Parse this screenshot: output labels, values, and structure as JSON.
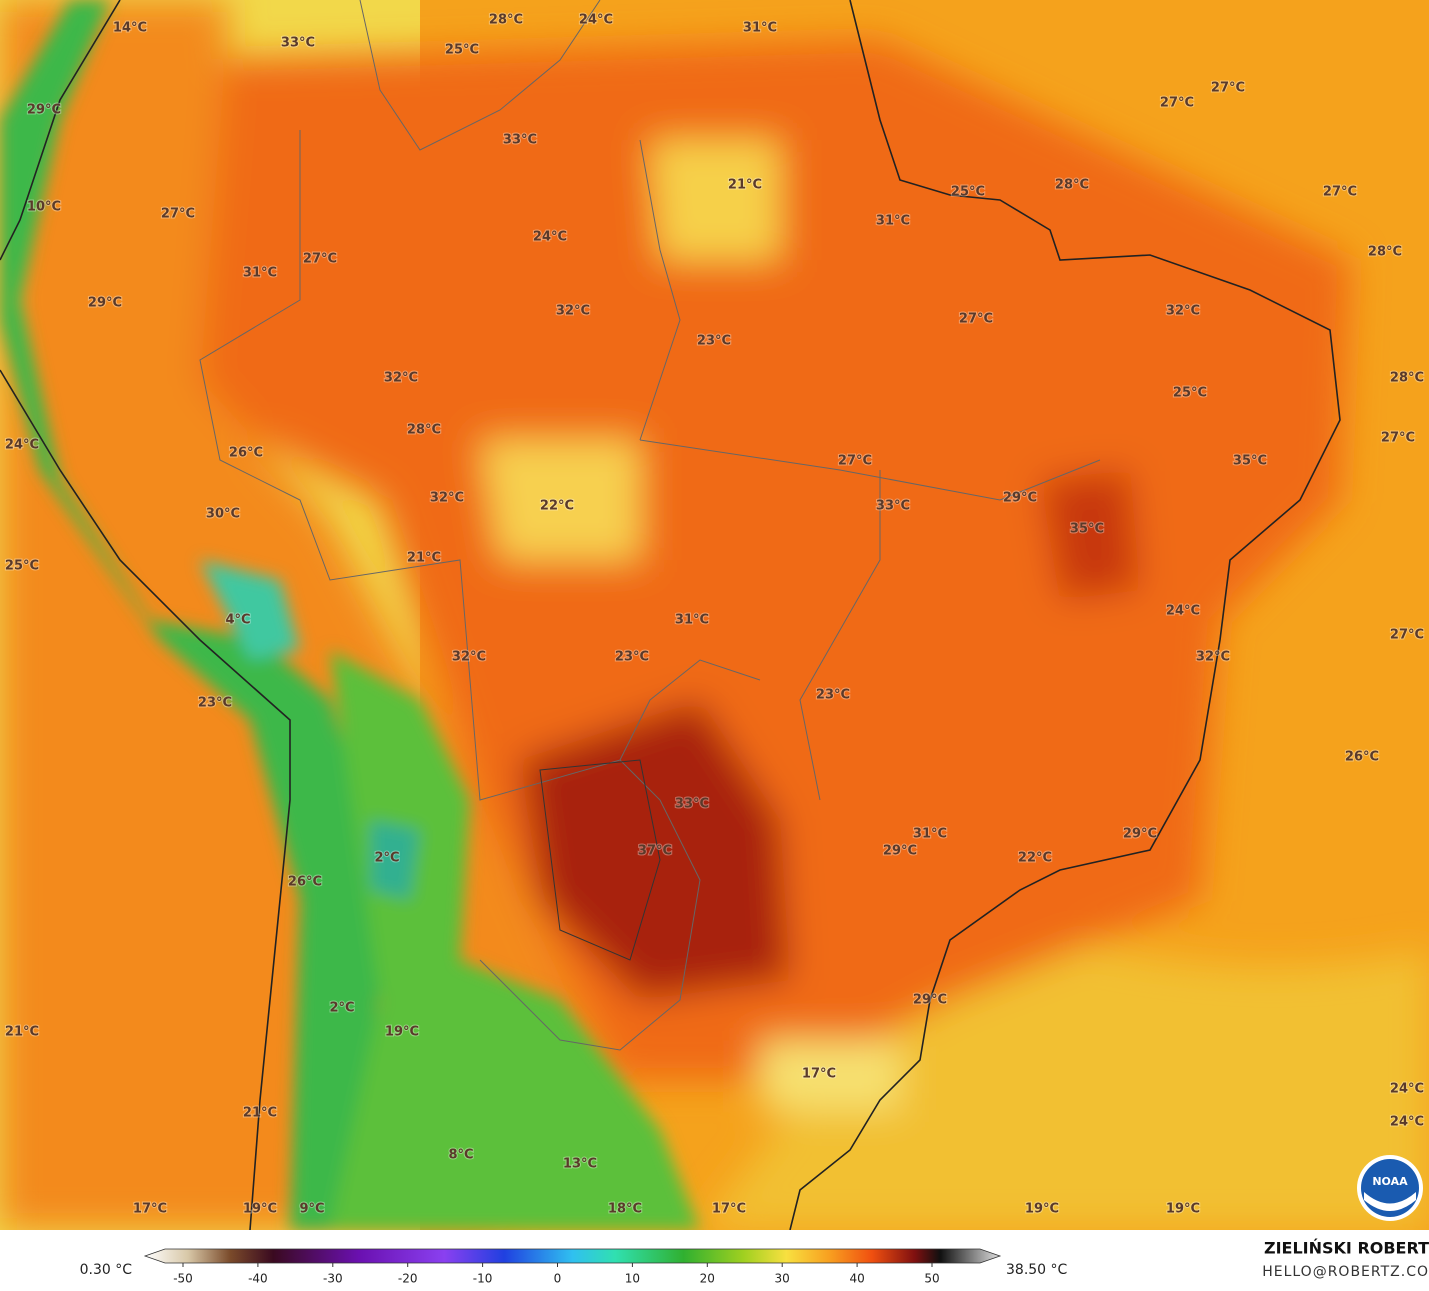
{
  "map": {
    "labels": [
      "14°C",
      "33°C",
      "28°C",
      "24°C",
      "25°C",
      "31°C",
      "29°C",
      "27°C",
      "27°C",
      "33°C",
      "21°C",
      "25°C",
      "28°C",
      "27°C",
      "10°C",
      "27°C",
      "31°C",
      "24°C",
      "28°C",
      "27°C",
      "31°C",
      "29°C",
      "32°C",
      "32°C",
      "27°C",
      "23°C",
      "32°C",
      "28°C",
      "25°C",
      "24°C",
      "28°C",
      "27°C",
      "26°C",
      "27°C",
      "35°C",
      "32°C",
      "29°C",
      "22°C",
      "33°C",
      "30°C",
      "35°C",
      "21°C",
      "25°C",
      "24°C",
      "31°C",
      "4°C",
      "27°C",
      "32°C",
      "23°C",
      "32°C",
      "23°C",
      "23°C",
      "26°C",
      "33°C",
      "31°C",
      "29°C",
      "29°C",
      "37°C",
      "2°C",
      "22°C",
      "26°C",
      "29°C",
      "2°C",
      "21°C",
      "19°C",
      "17°C",
      "24°C",
      "21°C",
      "24°C",
      "8°C",
      "13°C",
      "17°C",
      "19°C",
      "9°C",
      "18°C",
      "17°C",
      "19°C",
      "19°C"
    ]
  },
  "colorbar": {
    "min_label": "0.30 °C",
    "max_label": "38.50 °C",
    "ticks": [
      -50,
      -40,
      -30,
      -20,
      -10,
      0,
      10,
      20,
      30,
      40,
      50
    ]
  },
  "credit": {
    "name": "ZIELIŃSKI ROBERT",
    "contact": "HELLO@ROBERTZ.CO",
    "logo": "NOAA"
  }
}
